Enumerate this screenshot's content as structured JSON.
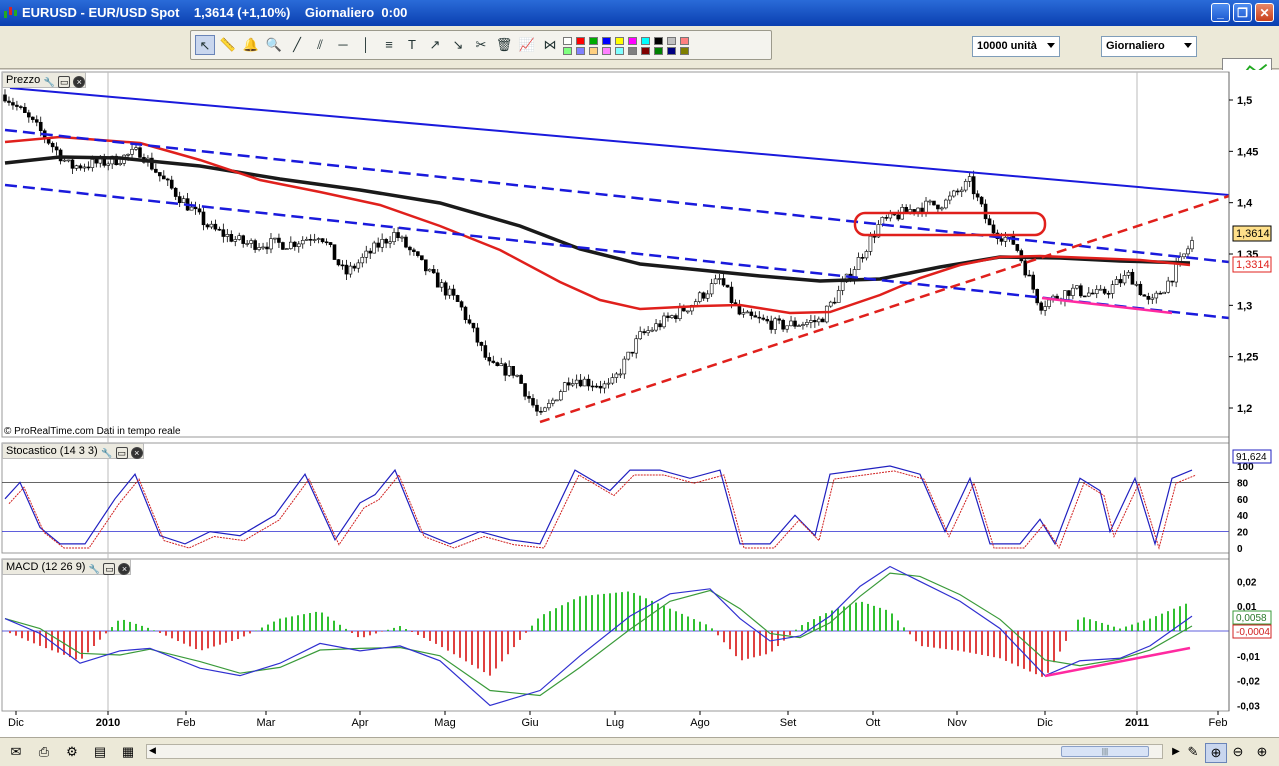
{
  "window": {
    "title": "EURUSD - EUR/USD Spot    1,3614 (+1,10%)    Giornaliero  0:00",
    "controls": {
      "minimize": "_",
      "maximize": "❐",
      "close": "✕"
    }
  },
  "toolbar": {
    "tools": [
      "cursor-icon",
      "ruler-icon",
      "alarm-bell-icon",
      "zoom-icon",
      "line-icon",
      "channel-icon",
      "horizontal-line-icon",
      "vertical-line-icon",
      "fibonacci-icon",
      "text-icon",
      "arrow-up-icon",
      "arrow-down-icon",
      "tools-icon",
      "trash-icon",
      "indicator-icon",
      "pattern-icon"
    ],
    "colors": [
      "#ffffff",
      "#ff0000",
      "#00aa00",
      "#0000ff",
      "#ffff00",
      "#ff00ff",
      "#00ffff",
      "#000000",
      "#c0c0c0",
      "#ff8080",
      "#80ff80",
      "#8080ff",
      "#ffd080",
      "#ff80ff",
      "#80ffff",
      "#808080",
      "#800000",
      "#008000",
      "#000080",
      "#808000"
    ],
    "units_select": "10000 unità",
    "period_select": "Giornaliero"
  },
  "panels": {
    "price": {
      "title": "Prezzo",
      "source": "© ProRealTime.com  Dati in tempo reale",
      "last_price": "1,3614",
      "ma_value": "1,3314",
      "axis": [
        "1,5",
        "1,45",
        "1,4",
        "1,35",
        "1,3",
        "1,25",
        "1,2"
      ]
    },
    "stochastic": {
      "title": "Stocastico (14 3 3)",
      "value": "91,624",
      "axis": [
        "100",
        "80",
        "60",
        "40",
        "20",
        "0"
      ],
      "level": "20"
    },
    "macd": {
      "title": "MACD (12 26 9)",
      "value1": "0,0058",
      "value2": "-0,0004",
      "axis": [
        "0,02",
        "0,01",
        "-0,01",
        "-0,02",
        "-0,03"
      ]
    }
  },
  "time_axis": [
    "Dic",
    "2010",
    "Feb",
    "Mar",
    "Apr",
    "Mag",
    "Giu",
    "Lug",
    "Ago",
    "Set",
    "Ott",
    "Nov",
    "Dic",
    "2011",
    "Feb"
  ],
  "colors": {
    "trend_blue": "#1a1adc",
    "ma_red": "#e0201c",
    "ma_black": "#1a1a1a",
    "divergence": "#ff2aa0",
    "candle_up": "#ffffff",
    "candle_down": "#000000"
  }
}
